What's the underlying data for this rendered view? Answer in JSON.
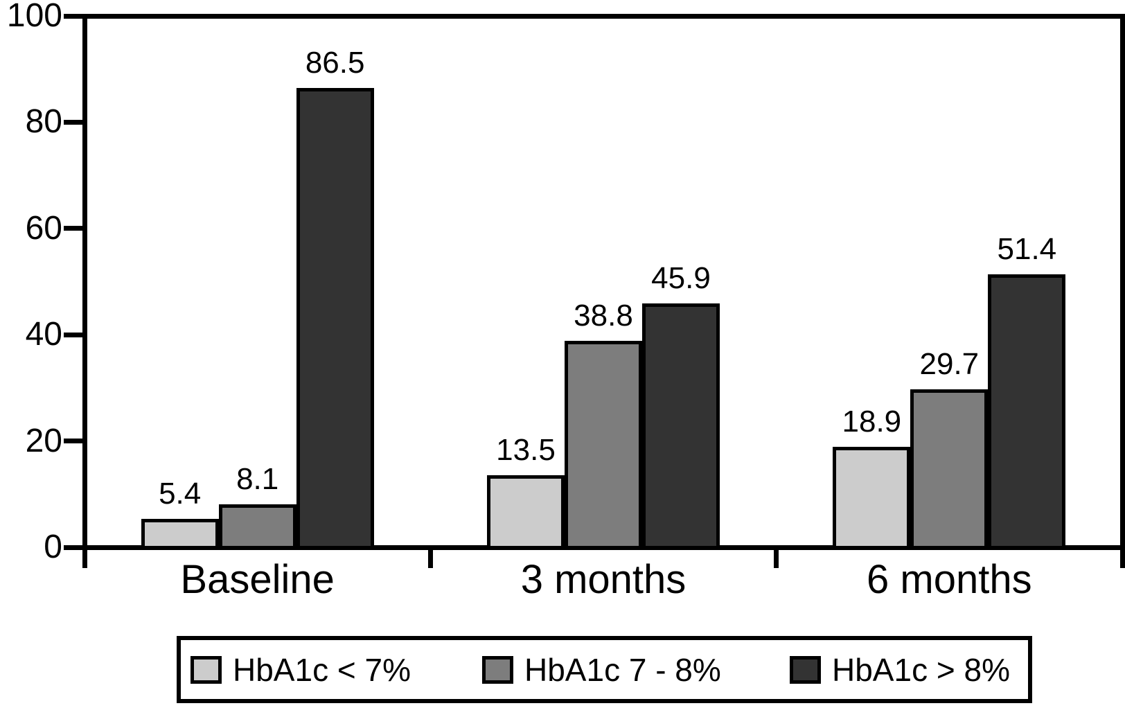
{
  "chart_data": {
    "type": "bar",
    "title": "",
    "xlabel": "",
    "ylabel": "",
    "categories": [
      "Baseline",
      "3 months",
      "6 months"
    ],
    "series": [
      {
        "name": "HbA1c < 7%",
        "color": "#cccccc",
        "values": [
          5.4,
          13.5,
          18.9
        ]
      },
      {
        "name": "HbA1c 7 - 8%",
        "color": "#7d7d7d",
        "values": [
          8.1,
          38.8,
          29.7
        ]
      },
      {
        "name": "HbA1c > 8%",
        "color": "#333333",
        "values": [
          86.5,
          45.9,
          51.4
        ]
      }
    ],
    "value_labels": [
      [
        "5.4",
        "8.1",
        "86.5"
      ],
      [
        "13.5",
        "38.8",
        "45.9"
      ],
      [
        "18.9",
        "29.7",
        "51.4"
      ]
    ],
    "ylim": [
      0,
      100
    ],
    "yticks": [
      0,
      20,
      40,
      60,
      80,
      100
    ],
    "grid": false,
    "legend_position": "bottom",
    "frame": "top-right-left-bottom"
  },
  "colors": {
    "background": "#ffffff",
    "axis": "#000000",
    "text": "#000000",
    "bar_border": "#000000"
  }
}
